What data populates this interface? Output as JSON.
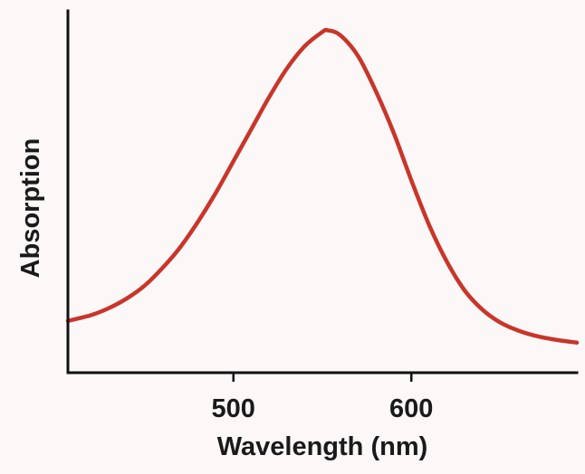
{
  "chart_data": {
    "type": "line",
    "title": "",
    "xlabel": "Wavelength (nm)",
    "ylabel": "Absorption",
    "xlim": [
      407,
      693
    ],
    "ylim": [
      0,
      1
    ],
    "x_ticks": [
      500,
      600
    ],
    "x_tick_labels": [
      "500",
      "600"
    ],
    "y_ticks": [],
    "grid": false,
    "legend": "none",
    "series": [
      {
        "name": "absorption",
        "color": "#c9352a",
        "x": [
          407,
          420,
          430,
          440,
          450,
          460,
          470,
          480,
          490,
          500,
          510,
          520,
          530,
          540,
          550,
          553,
          560,
          570,
          580,
          590,
          600,
          610,
          620,
          630,
          640,
          650,
          660,
          670,
          680,
          693
        ],
        "y": [
          0.08,
          0.098,
          0.12,
          0.15,
          0.19,
          0.245,
          0.31,
          0.39,
          0.48,
          0.58,
          0.68,
          0.78,
          0.87,
          0.94,
          0.985,
          0.99,
          0.975,
          0.91,
          0.8,
          0.67,
          0.52,
          0.38,
          0.265,
          0.175,
          0.115,
          0.075,
          0.05,
          0.033,
          0.022,
          0.012
        ]
      }
    ]
  }
}
